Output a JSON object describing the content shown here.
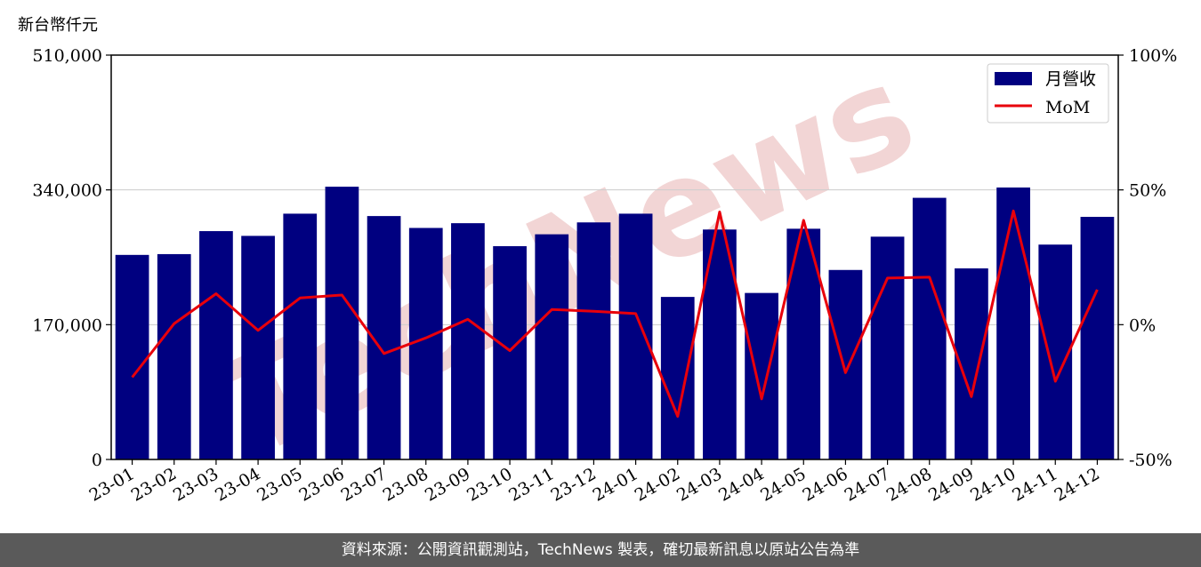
{
  "unit_label": "新台幣仟元",
  "footer_text": "資料來源：公開資訊觀測站，TechNews 製表，確切最新訊息以原站公告為準",
  "watermark_text": "TechNews",
  "colors": {
    "bar": "#000080",
    "line": "#e8000b",
    "grid": "#cccccc",
    "watermark": "#f2d5d5"
  },
  "chart_data": {
    "type": "bar",
    "categories": [
      "23-01",
      "23-02",
      "23-03",
      "23-04",
      "23-05",
      "23-06",
      "23-07",
      "23-08",
      "23-09",
      "23-10",
      "23-11",
      "23-12",
      "24-01",
      "24-02",
      "24-03",
      "24-04",
      "24-05",
      "24-06",
      "24-07",
      "24-08",
      "24-09",
      "24-10",
      "24-11",
      "24-12"
    ],
    "series": [
      {
        "name": "月營收",
        "type": "bar",
        "axis": "left",
        "values": [
          258000,
          259000,
          288000,
          282000,
          310000,
          344000,
          307000,
          292000,
          298000,
          269000,
          284000,
          299000,
          310000,
          205000,
          290000,
          210000,
          291000,
          239000,
          281000,
          330000,
          241000,
          343000,
          271000,
          306000
        ]
      },
      {
        "name": "MoM",
        "type": "line",
        "axis": "right",
        "values": [
          -19.5,
          0.4,
          11.5,
          -2.1,
          9.9,
          11.0,
          -10.7,
          -4.9,
          2.0,
          -9.6,
          5.6,
          5.0,
          4.1,
          -34.0,
          41.8,
          -27.5,
          38.7,
          -17.8,
          17.3,
          17.6,
          -26.7,
          42.2,
          -21.0,
          13.0
        ]
      }
    ],
    "yticks_left": [
      "0",
      "170,000",
      "340,000",
      "510,000"
    ],
    "yticks_right": [
      "-50%",
      "0%",
      "50%",
      "100%"
    ],
    "ylim_left": [
      0,
      510000
    ],
    "ylim_right": [
      -50,
      100
    ],
    "grid": "horizontal",
    "legend_position": "top-right"
  }
}
